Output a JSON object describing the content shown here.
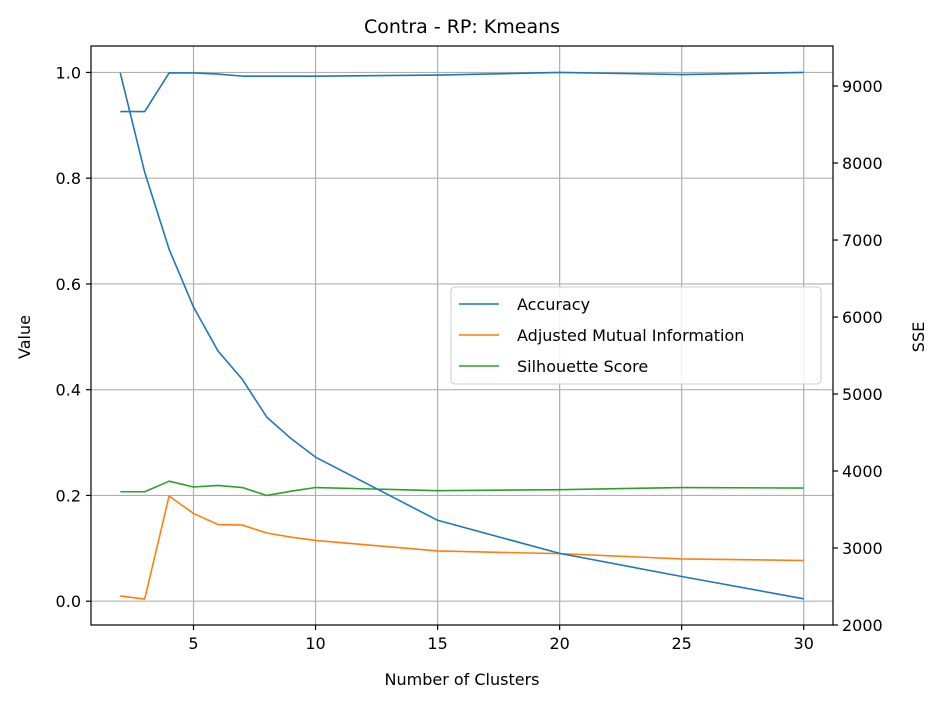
{
  "chart_data": {
    "type": "line",
    "title": "Contra - RP: Kmeans",
    "xlabel": "Number of Clusters",
    "ylabel": "Value",
    "y2label": "SSE",
    "xlim": [
      0.8,
      31.2
    ],
    "ylim": [
      -0.045,
      1.05
    ],
    "y2lim": [
      2000,
      9520
    ],
    "x_ticks": [
      5,
      10,
      15,
      20,
      25,
      30
    ],
    "y_ticks": [
      0.0,
      0.2,
      0.4,
      0.6,
      0.8,
      1.0
    ],
    "y2_ticks": [
      2000,
      3000,
      4000,
      5000,
      6000,
      7000,
      8000,
      9000
    ],
    "grid": true,
    "legend_position": "center-right",
    "x": [
      2,
      3,
      4,
      5,
      6,
      7,
      8,
      9,
      10,
      15,
      20,
      25,
      30
    ],
    "series": [
      {
        "name": "Accuracy",
        "axis": "left",
        "color": "#1f77b4",
        "values": [
          0.926,
          0.926,
          0.999,
          0.999,
          0.997,
          0.993,
          0.993,
          0.993,
          0.993,
          0.995,
          1.0,
          0.996,
          1.0
        ]
      },
      {
        "name": "Adjusted Mutual Information",
        "axis": "left",
        "color": "#ff7f0e",
        "values": [
          0.01,
          0.004,
          0.199,
          0.166,
          0.145,
          0.144,
          0.129,
          0.121,
          0.115,
          0.095,
          0.09,
          0.08,
          0.077
        ]
      },
      {
        "name": "Silhouette Score",
        "axis": "left",
        "color": "#2ca02c",
        "values": [
          0.207,
          0.207,
          0.227,
          0.216,
          0.219,
          0.215,
          0.2,
          0.208,
          0.215,
          0.209,
          0.211,
          0.215,
          0.214
        ]
      },
      {
        "axis": "right",
        "color": "#1f77b4",
        "values": [
          9170,
          7880,
          6880,
          6130,
          5560,
          5190,
          4700,
          4420,
          4180,
          3360,
          2930,
          2630,
          2340
        ]
      }
    ]
  }
}
